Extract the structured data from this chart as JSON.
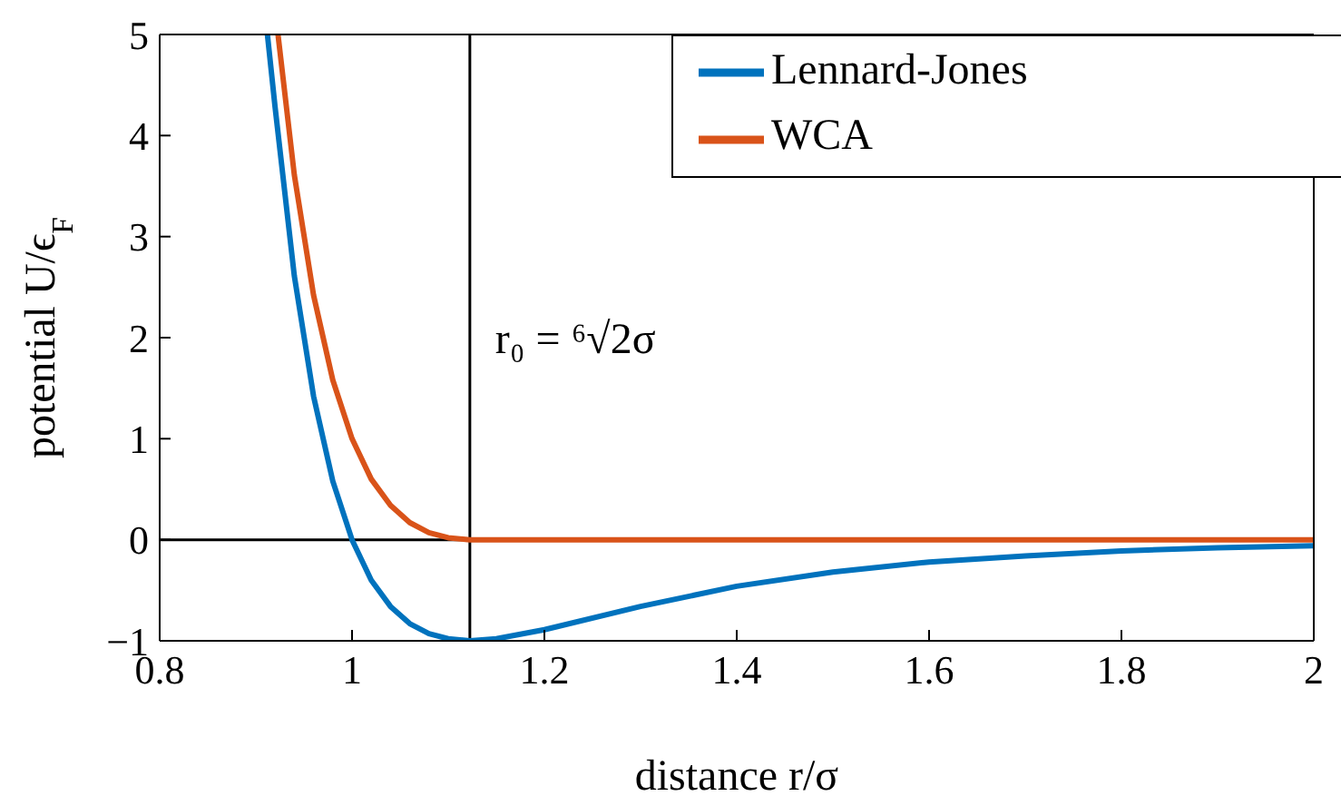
{
  "chart_data": {
    "type": "line",
    "xlabel": "distance r/σ",
    "ylabel": "potential U/ϵ$_{F}$",
    "xlim": [
      0.8,
      2
    ],
    "xticks": [
      0.8,
      1,
      1.2,
      1.4,
      1.6,
      1.8,
      2
    ],
    "ylim": [
      -1,
      5
    ],
    "yticks": [
      {
        "value": -1,
        "label": "−1"
      },
      0,
      1,
      2,
      3,
      4,
      5
    ],
    "series": [
      {
        "name": "Lennard-Jones",
        "color": "#0072bd",
        "x": [
          0.912,
          0.92,
          0.94,
          0.96,
          0.98,
          1.0,
          1.02,
          1.04,
          1.06,
          1.08,
          1.1,
          1.1225,
          1.15,
          1.2,
          1.3,
          1.4,
          1.5,
          1.6,
          1.7,
          1.8,
          1.9,
          2.0
        ],
        "values": [
          5,
          4.28,
          2.61,
          1.42,
          0.58,
          0,
          -0.4,
          -0.66,
          -0.83,
          -0.93,
          -0.98,
          -1,
          -0.98,
          -0.89,
          -0.66,
          -0.46,
          -0.32,
          -0.22,
          -0.16,
          -0.11,
          -0.08,
          -0.06
        ]
      },
      {
        "name": "WCA",
        "color": "#d95319",
        "x": [
          0.923,
          0.94,
          0.96,
          0.98,
          1.0,
          1.02,
          1.04,
          1.06,
          1.08,
          1.1,
          1.1225,
          2.0
        ],
        "values": [
          5,
          3.61,
          2.42,
          1.58,
          1,
          0.6,
          0.34,
          0.17,
          0.07,
          0.02,
          0,
          0
        ]
      }
    ],
    "ref_lines": [
      {
        "axis": "x",
        "value": 1.1225,
        "label": "r₀ = ⁶√2σ",
        "color": "#000000"
      },
      {
        "axis": "y",
        "value": 0,
        "color": "#000000"
      }
    ],
    "legend": "top right",
    "grid": false,
    "marker": "none",
    "line_style": "solid"
  }
}
